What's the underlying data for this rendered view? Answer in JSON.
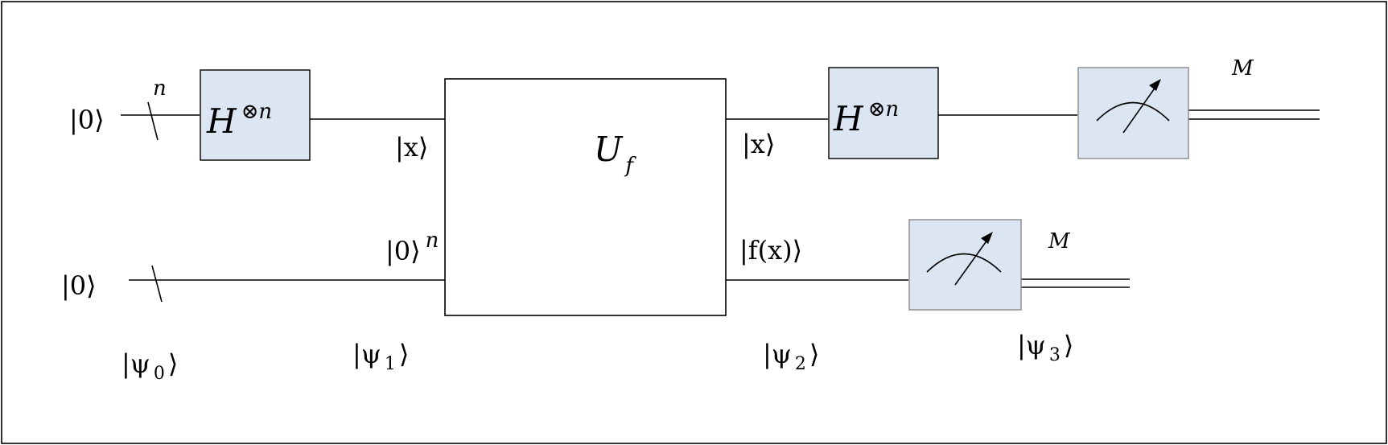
{
  "register_top": {
    "input": "|0⟩",
    "width_label": "n",
    "hadamard_1": {
      "base": "H",
      "power": "⊗n"
    },
    "oracle_in_label": "|x⟩",
    "oracle_out_label": "|x⟩",
    "hadamard_2": {
      "base": "H",
      "power": "⊗n"
    },
    "measure_label": "M"
  },
  "register_bottom": {
    "input": "|0⟩",
    "oracle_in_label": {
      "ket": "|0⟩",
      "power": "n"
    },
    "oracle_out_label": "|f(x)⟩",
    "measure_label": "M"
  },
  "oracle": {
    "base": "U",
    "subscript": "f"
  },
  "states": [
    {
      "open": "|ψ",
      "sub": "0",
      "close": "⟩"
    },
    {
      "open": "|ψ",
      "sub": "1",
      "close": "⟩"
    },
    {
      "open": "|ψ",
      "sub": "2",
      "close": "⟩"
    },
    {
      "open": "|ψ",
      "sub": "3",
      "close": "⟩"
    }
  ],
  "colors": {
    "gate_fill": "#dce6f2",
    "wire": "#000000",
    "meter_border": "#888888"
  }
}
